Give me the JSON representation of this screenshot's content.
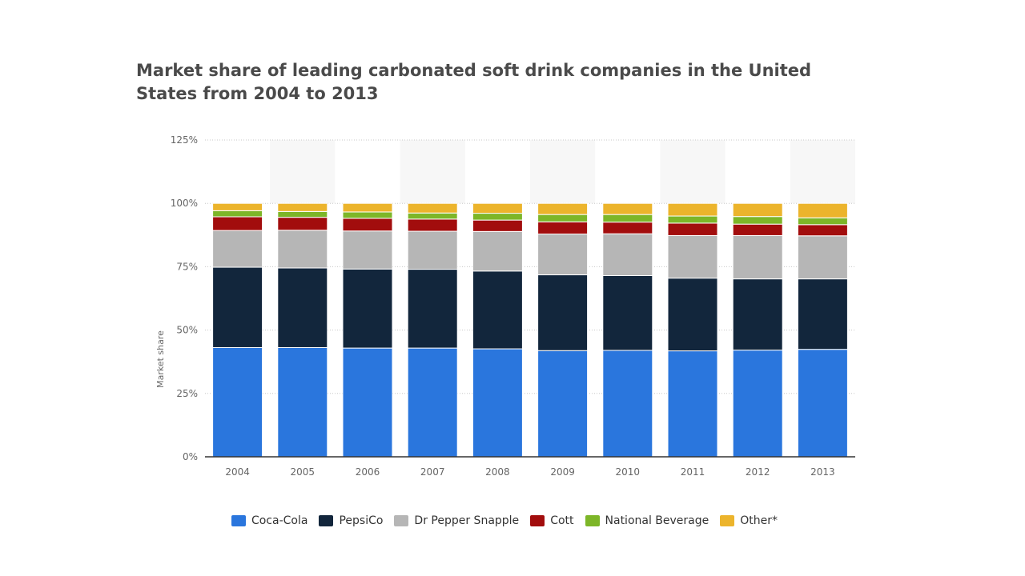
{
  "chart_data": {
    "type": "bar",
    "stacked": true,
    "title": "Market share of leading carbonated soft drink companies in the United States from 2004 to 2013",
    "xlabel": "",
    "ylabel": "Market share",
    "ylim": [
      0,
      125
    ],
    "yticks": [
      0,
      25,
      50,
      75,
      100,
      125
    ],
    "ytick_labels": [
      "0%",
      "25%",
      "50%",
      "75%",
      "100%",
      "125%"
    ],
    "grid": true,
    "legend_position": "bottom",
    "categories": [
      "2004",
      "2005",
      "2006",
      "2007",
      "2008",
      "2009",
      "2010",
      "2011",
      "2012",
      "2013"
    ],
    "series": [
      {
        "name": "Coca-Cola",
        "color": "#2a76dd",
        "values": [
          43.1,
          43.1,
          42.9,
          42.9,
          42.6,
          41.9,
          42.0,
          41.8,
          42.1,
          42.4
        ]
      },
      {
        "name": "PepsiCo",
        "color": "#12263c",
        "values": [
          31.7,
          31.4,
          31.2,
          31.1,
          30.7,
          29.9,
          29.5,
          28.7,
          28.1,
          27.8
        ]
      },
      {
        "name": "Dr Pepper Snapple",
        "color": "#b6b6b6",
        "values": [
          14.5,
          14.9,
          15.0,
          15.0,
          15.6,
          16.1,
          16.5,
          16.8,
          17.1,
          17.0
        ]
      },
      {
        "name": "Cott",
        "color": "#a20d0d",
        "values": [
          5.4,
          5.1,
          5.0,
          4.8,
          4.5,
          4.8,
          4.6,
          4.9,
          4.5,
          4.4
        ]
      },
      {
        "name": "National Beverage",
        "color": "#7db628",
        "values": [
          2.4,
          2.3,
          2.5,
          2.4,
          2.7,
          2.9,
          3.0,
          2.8,
          3.0,
          2.7
        ]
      },
      {
        "name": "Other*",
        "color": "#ecb42c",
        "values": [
          2.9,
          3.2,
          3.4,
          3.8,
          3.9,
          4.4,
          4.4,
          5.0,
          5.2,
          5.7
        ]
      }
    ]
  }
}
